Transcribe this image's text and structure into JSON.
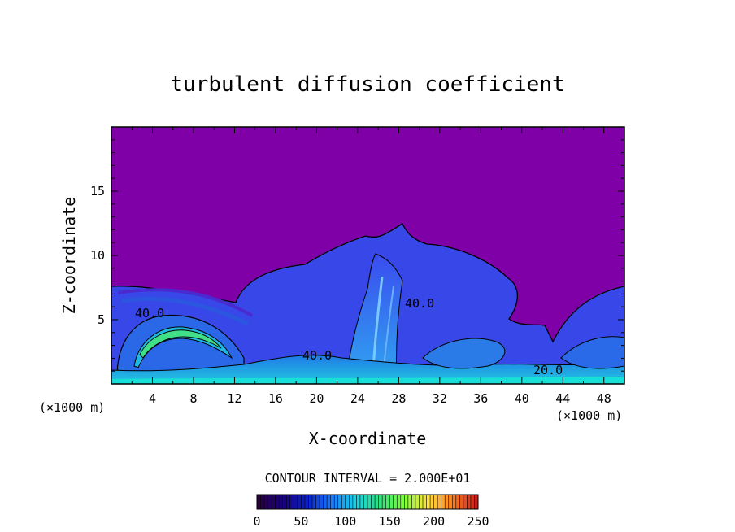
{
  "chart_data": {
    "type": "heatmap",
    "title": "turbulent diffusion coefficient",
    "xlabel": "X-coordinate",
    "ylabel": "Z-coordinate",
    "x_unit": "(×1000 m)",
    "y_unit": "(×1000 m)",
    "xlim": [
      0,
      50
    ],
    "ylim": [
      0,
      20
    ],
    "x_ticks": [
      "4",
      "8",
      "12",
      "16",
      "20",
      "24",
      "28",
      "32",
      "36",
      "40",
      "44",
      "48"
    ],
    "y_ticks": [
      "5",
      "10",
      "15"
    ],
    "contour_interval_text": "CONTOUR INTERVAL = 2.000E+01",
    "contour_labels": [
      "40.0",
      "40.0",
      "40.0",
      "20.0"
    ],
    "colorbar": {
      "min": 0,
      "max": 250,
      "tick_labels": [
        "0",
        "50",
        "100",
        "150",
        "200",
        "250"
      ],
      "colors": [
        "#2a0040",
        "#1a0080",
        "#0a20c8",
        "#1a78ff",
        "#18d2e6",
        "#30e080",
        "#80ff40",
        "#ffe040",
        "#ff8020",
        "#c82020"
      ]
    },
    "background_value_color": "#8000a8"
  }
}
